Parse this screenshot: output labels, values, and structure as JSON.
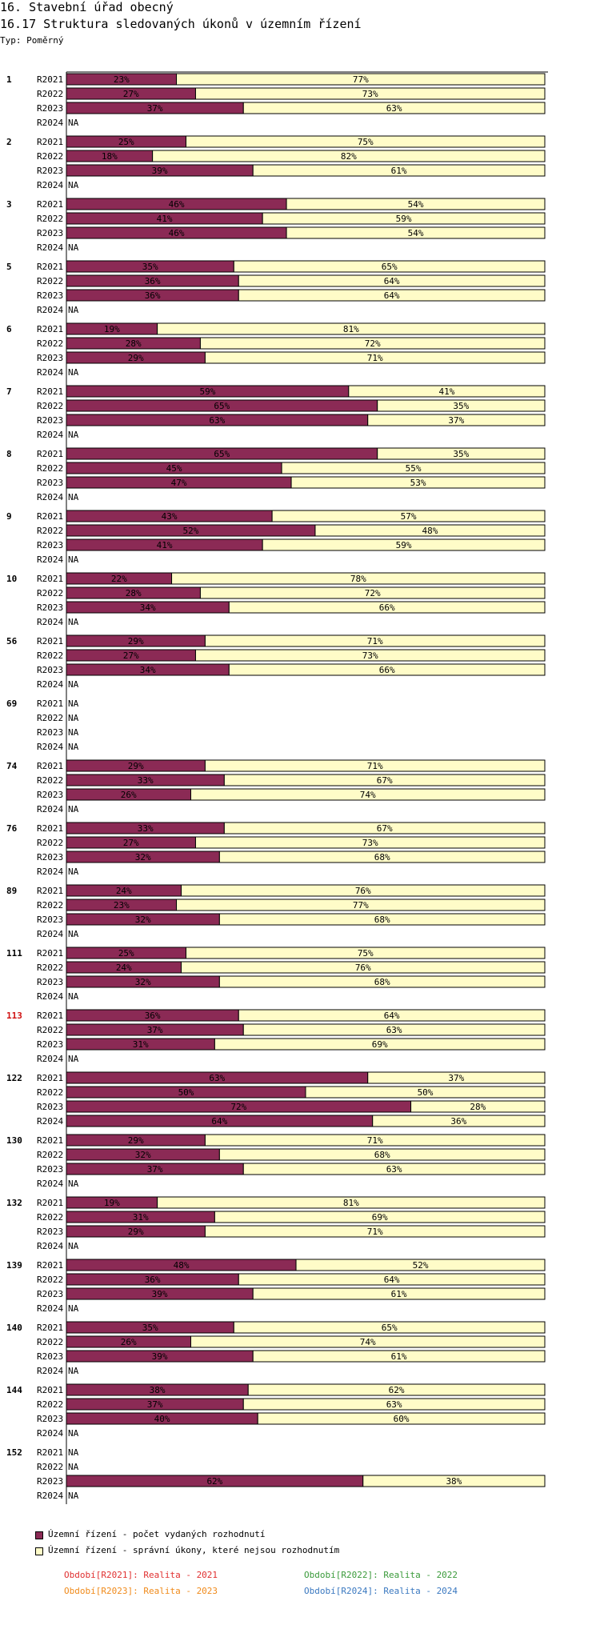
{
  "header": {
    "title": "16. Stavební úřad obecný",
    "subtitle": "16.17 Struktura sledovaných úkonů v územním řízení",
    "type_label": "Typ: Poměrný"
  },
  "chart_data": {
    "type": "bar",
    "stacked": "percent",
    "orientation": "horizontal",
    "title": "16.17 Struktura sledovaných úkonů v územním řízení",
    "periods": [
      "R2021",
      "R2022",
      "R2023",
      "R2024"
    ],
    "na_label": "NA",
    "colors": {
      "issued": "#8b2a55",
      "other": "#fffcc8"
    },
    "series": [
      {
        "name": "Územní řízení - počet vydaných rozhodnutí",
        "color": "#8b2a55"
      },
      {
        "name": "Územní řízení - správní úkony, které nejsou rozhodnutím",
        "color": "#fffcc8"
      }
    ],
    "groups": [
      {
        "label": "1",
        "highlight": false,
        "values": [
          [
            23,
            77
          ],
          [
            27,
            73
          ],
          [
            37,
            63
          ],
          null
        ]
      },
      {
        "label": "2",
        "highlight": false,
        "values": [
          [
            25,
            75
          ],
          [
            18,
            82
          ],
          [
            39,
            61
          ],
          null
        ]
      },
      {
        "label": "3",
        "highlight": false,
        "values": [
          [
            46,
            54
          ],
          [
            41,
            59
          ],
          [
            46,
            54
          ],
          null
        ]
      },
      {
        "label": "5",
        "highlight": false,
        "values": [
          [
            35,
            65
          ],
          [
            36,
            64
          ],
          [
            36,
            64
          ],
          null
        ]
      },
      {
        "label": "6",
        "highlight": false,
        "values": [
          [
            19,
            81
          ],
          [
            28,
            72
          ],
          [
            29,
            71
          ],
          null
        ]
      },
      {
        "label": "7",
        "highlight": false,
        "values": [
          [
            59,
            41
          ],
          [
            65,
            35
          ],
          [
            63,
            37
          ],
          null
        ]
      },
      {
        "label": "8",
        "highlight": false,
        "values": [
          [
            65,
            35
          ],
          [
            45,
            55
          ],
          [
            47,
            53
          ],
          null
        ]
      },
      {
        "label": "9",
        "highlight": false,
        "values": [
          [
            43,
            57
          ],
          [
            52,
            48
          ],
          [
            41,
            59
          ],
          null
        ]
      },
      {
        "label": "10",
        "highlight": false,
        "values": [
          [
            22,
            78
          ],
          [
            28,
            72
          ],
          [
            34,
            66
          ],
          null
        ]
      },
      {
        "label": "56",
        "highlight": false,
        "values": [
          [
            29,
            71
          ],
          [
            27,
            73
          ],
          [
            34,
            66
          ],
          null
        ]
      },
      {
        "label": "69",
        "highlight": false,
        "values": [
          null,
          null,
          null,
          null
        ]
      },
      {
        "label": "74",
        "highlight": false,
        "values": [
          [
            29,
            71
          ],
          [
            33,
            67
          ],
          [
            26,
            74
          ],
          null
        ]
      },
      {
        "label": "76",
        "highlight": false,
        "values": [
          [
            33,
            67
          ],
          [
            27,
            73
          ],
          [
            32,
            68
          ],
          null
        ]
      },
      {
        "label": "89",
        "highlight": false,
        "values": [
          [
            24,
            76
          ],
          [
            23,
            77
          ],
          [
            32,
            68
          ],
          null
        ]
      },
      {
        "label": "111",
        "highlight": false,
        "values": [
          [
            25,
            75
          ],
          [
            24,
            76
          ],
          [
            32,
            68
          ],
          null
        ]
      },
      {
        "label": "113",
        "highlight": true,
        "values": [
          [
            36,
            64
          ],
          [
            37,
            63
          ],
          [
            31,
            69
          ],
          null
        ]
      },
      {
        "label": "122",
        "highlight": false,
        "values": [
          [
            63,
            37
          ],
          [
            50,
            50
          ],
          [
            72,
            28
          ],
          [
            64,
            36
          ]
        ]
      },
      {
        "label": "130",
        "highlight": false,
        "values": [
          [
            29,
            71
          ],
          [
            32,
            68
          ],
          [
            37,
            63
          ],
          null
        ]
      },
      {
        "label": "132",
        "highlight": false,
        "values": [
          [
            19,
            81
          ],
          [
            31,
            69
          ],
          [
            29,
            71
          ],
          null
        ]
      },
      {
        "label": "139",
        "highlight": false,
        "values": [
          [
            48,
            52
          ],
          [
            36,
            64
          ],
          [
            39,
            61
          ],
          null
        ]
      },
      {
        "label": "140",
        "highlight": false,
        "values": [
          [
            35,
            65
          ],
          [
            26,
            74
          ],
          [
            39,
            61
          ],
          null
        ]
      },
      {
        "label": "144",
        "highlight": false,
        "values": [
          [
            38,
            62
          ],
          [
            37,
            63
          ],
          [
            40,
            60
          ],
          null
        ]
      },
      {
        "label": "152",
        "highlight": false,
        "values": [
          null,
          null,
          [
            62,
            38
          ],
          null
        ]
      }
    ]
  },
  "legend": {
    "items": [
      {
        "label": "Územní řízení - počet vydaných rozhodnutí",
        "color": "#8b2a55"
      },
      {
        "label": "Územní řízení - správní úkony, které nejsou rozhodnutím",
        "color": "#fffcc8"
      }
    ]
  },
  "periods_legend": [
    {
      "text": "Období[R2021]: Realita - 2021",
      "color": "#e03030"
    },
    {
      "text": "Období[R2022]: Realita - 2022",
      "color": "#3a9a3a"
    },
    {
      "text": "Období[R2023]: Realita - 2023",
      "color": "#f08a1a"
    },
    {
      "text": "Období[R2024]: Realita - 2024",
      "color": "#3a78c0"
    }
  ]
}
